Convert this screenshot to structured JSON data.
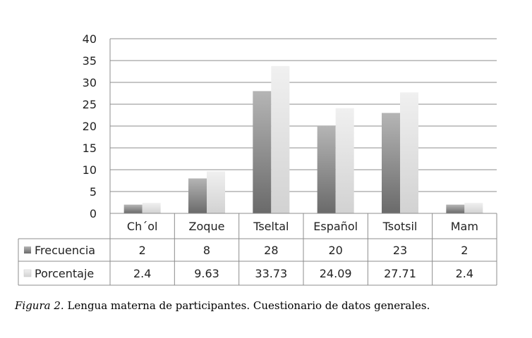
{
  "chart_data": {
    "type": "bar",
    "categories": [
      "Ch´ol",
      "Zoque",
      "Tseltal",
      "Español",
      "Tsotsil",
      "Mam"
    ],
    "series": [
      {
        "name": "Frecuencia",
        "values": [
          2,
          8,
          28,
          20,
          23,
          2
        ],
        "labels": [
          "2",
          "8",
          "28",
          "20",
          "23",
          "2"
        ],
        "color": "#8a8a8a"
      },
      {
        "name": "Porcentaje",
        "values": [
          2.4,
          9.63,
          33.73,
          24.09,
          27.71,
          2.4
        ],
        "labels": [
          "2.4",
          "9.63",
          "33.73",
          "24.09",
          "27.71",
          "2.4"
        ],
        "color": "#e0e0e0"
      }
    ],
    "ylim": [
      0,
      40
    ],
    "yticks": [
      "0",
      "5",
      "10",
      "15",
      "20",
      "25",
      "30",
      "35",
      "40"
    ],
    "grid": true,
    "legend": "data-table"
  },
  "caption": {
    "figure_label": "Figura 2.",
    "text": " Lengua materna de participantes. Cuestionario de datos generales."
  }
}
